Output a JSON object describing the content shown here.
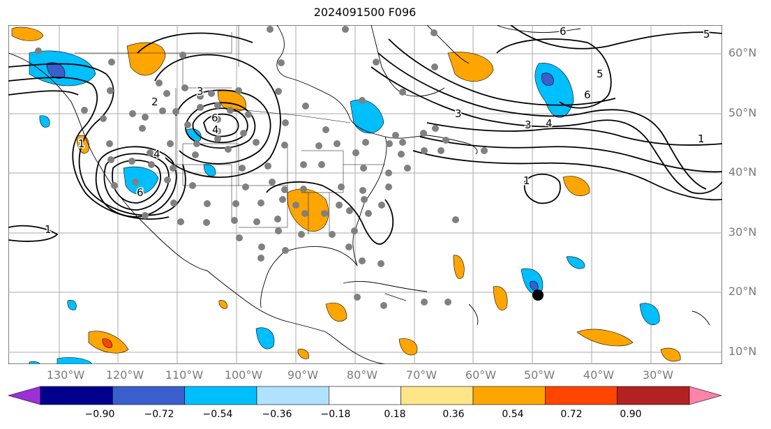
{
  "title": "2024091500 F096",
  "lat_labels": [
    "60°N",
    "50°N",
    "40°N",
    "30°N",
    "20°N",
    "10°N"
  ],
  "lon_labels": [
    "130°W",
    "120°W",
    "110°W",
    "100°W",
    "90°W",
    "80°W",
    "70°W",
    "60°W",
    "50°W",
    "40°W",
    "30°W"
  ],
  "contour_labels": [
    "5",
    "6",
    "5",
    "6",
    "3",
    "4",
    "1",
    "1",
    "3",
    "6",
    "4",
    "2",
    "4",
    "6",
    "1",
    "1",
    "3"
  ],
  "colorbar": {
    "ticks": [
      "−0.90",
      "−0.72",
      "−0.54",
      "−0.36",
      "−0.18",
      "0.18",
      "0.36",
      "0.54",
      "0.72",
      "0.90"
    ],
    "colors": [
      "#9b30d9",
      "#00008b",
      "#3a5fcd",
      "#00bfff",
      "#b0e2ff",
      "#ffffff",
      "#ffe58a",
      "#ffa500",
      "#ff4500",
      "#b22222",
      "#ff82ab"
    ]
  }
}
